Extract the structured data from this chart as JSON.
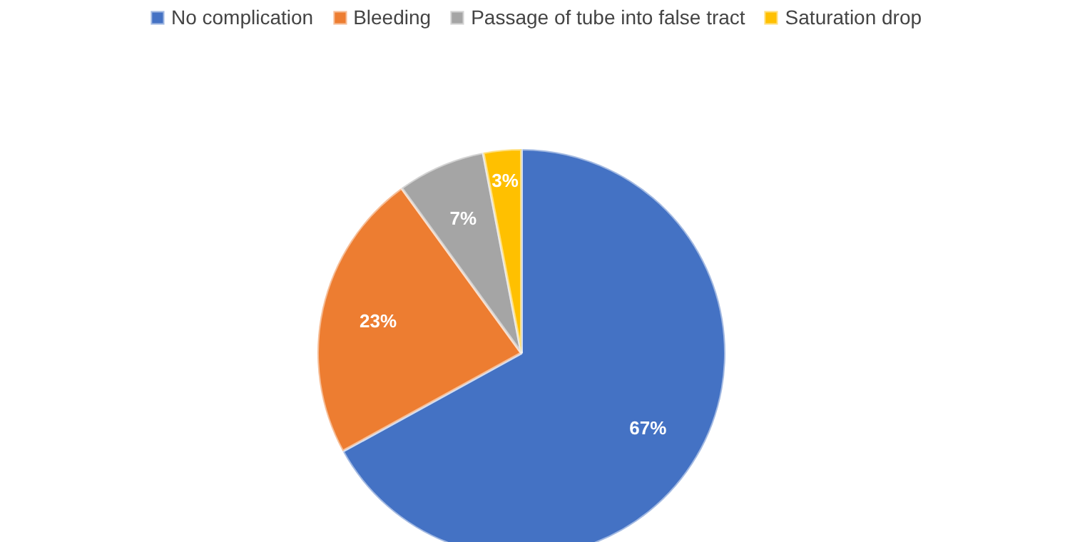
{
  "chart_data": {
    "type": "pie",
    "categories": [
      "No complication",
      "Bleeding",
      "Passage of tube into false tract",
      "Saturation drop"
    ],
    "values": [
      67,
      23,
      7,
      3
    ],
    "colors": [
      "#4472c4",
      "#ed7d31",
      "#a5a5a5",
      "#ffc000"
    ],
    "value_labels": [
      "67%",
      "23%",
      "7%",
      "3%"
    ],
    "legend": "top"
  }
}
